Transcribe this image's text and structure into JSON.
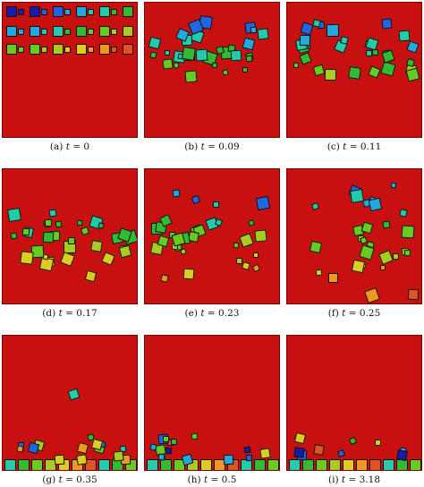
{
  "panels": [
    {
      "id": "a",
      "label": "(a)",
      "t_symbol": "t",
      "equals": "=",
      "t_value": "0"
    },
    {
      "id": "b",
      "label": "(b)",
      "t_symbol": "t",
      "equals": "=",
      "t_value": "0.09"
    },
    {
      "id": "c",
      "label": "(c)",
      "t_symbol": "t",
      "equals": "=",
      "t_value": "0.11"
    },
    {
      "id": "d",
      "label": "(d)",
      "t_symbol": "t",
      "equals": "=",
      "t_value": "0.17"
    },
    {
      "id": "e",
      "label": "(e)",
      "t_symbol": "t",
      "equals": "=",
      "t_value": "0.23"
    },
    {
      "id": "f",
      "label": "(f)",
      "t_symbol": "t",
      "equals": "=",
      "t_value": "0.25"
    },
    {
      "id": "g",
      "label": "(g)",
      "t_symbol": "t",
      "equals": "=",
      "t_value": "0.35"
    },
    {
      "id": "h",
      "label": "(h)",
      "t_symbol": "t",
      "equals": "=",
      "t_value": "0.5"
    },
    {
      "id": "i",
      "label": "(i)",
      "t_symbol": "t",
      "equals": "=",
      "t_value": "3.18"
    }
  ],
  "colors": {
    "background": "#c81010",
    "particle_palette": [
      "#1a1aa8",
      "#2266dd",
      "#22aadd",
      "#22ccaa",
      "#33bb33",
      "#66cc22",
      "#aacc22",
      "#ddcc22",
      "#ee9922",
      "#dd5522"
    ]
  }
}
